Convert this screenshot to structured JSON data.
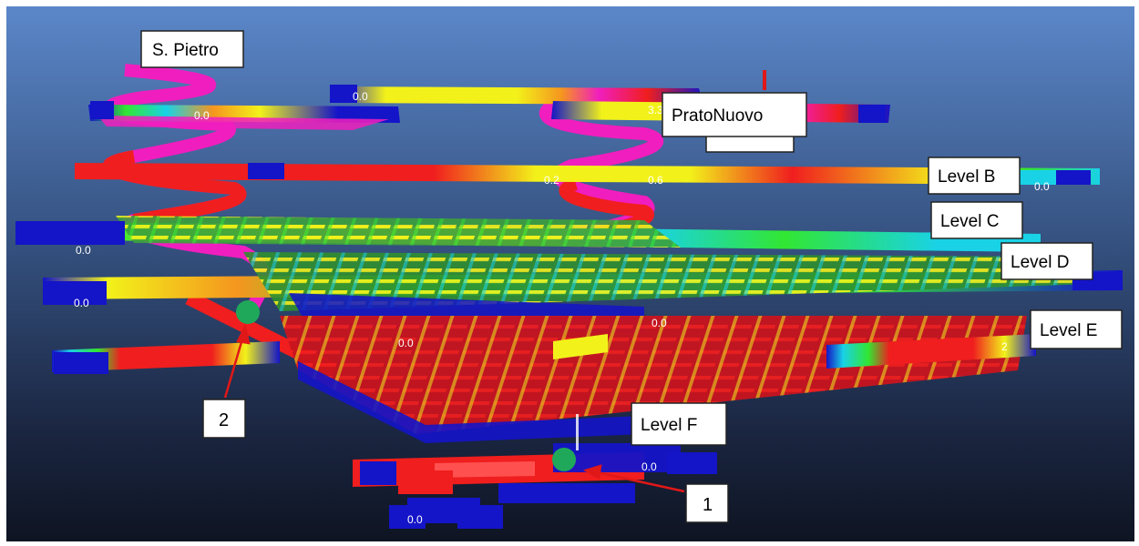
{
  "labels": {
    "s_pietro": "S. Pietro",
    "prato_nuovo": "PratoNuovo",
    "level_b": "Level B",
    "level_c": "Level C",
    "level_d": "Level D",
    "level_e": "Level E",
    "level_f": "Level F"
  },
  "values": {
    "v1": "0.0",
    "v2": "0.0",
    "v3": "3.3",
    "v4": "0.2",
    "v5": "0.6",
    "v6": "0.0",
    "v7": "0.0",
    "v8": "0.0",
    "v9": "0.0",
    "v10": "0.0",
    "v11": "0.0",
    "v12": "0.0",
    "v13": "2"
  },
  "callouts": {
    "c1": "1",
    "c2": "2"
  },
  "colors": {
    "bg_top": "#5a86c8",
    "bg_bottom": "#0f1626",
    "blue_block": "#1414c8",
    "red": "#f01e1e",
    "marker": "#1fa85a",
    "arrow": "#e01818"
  }
}
